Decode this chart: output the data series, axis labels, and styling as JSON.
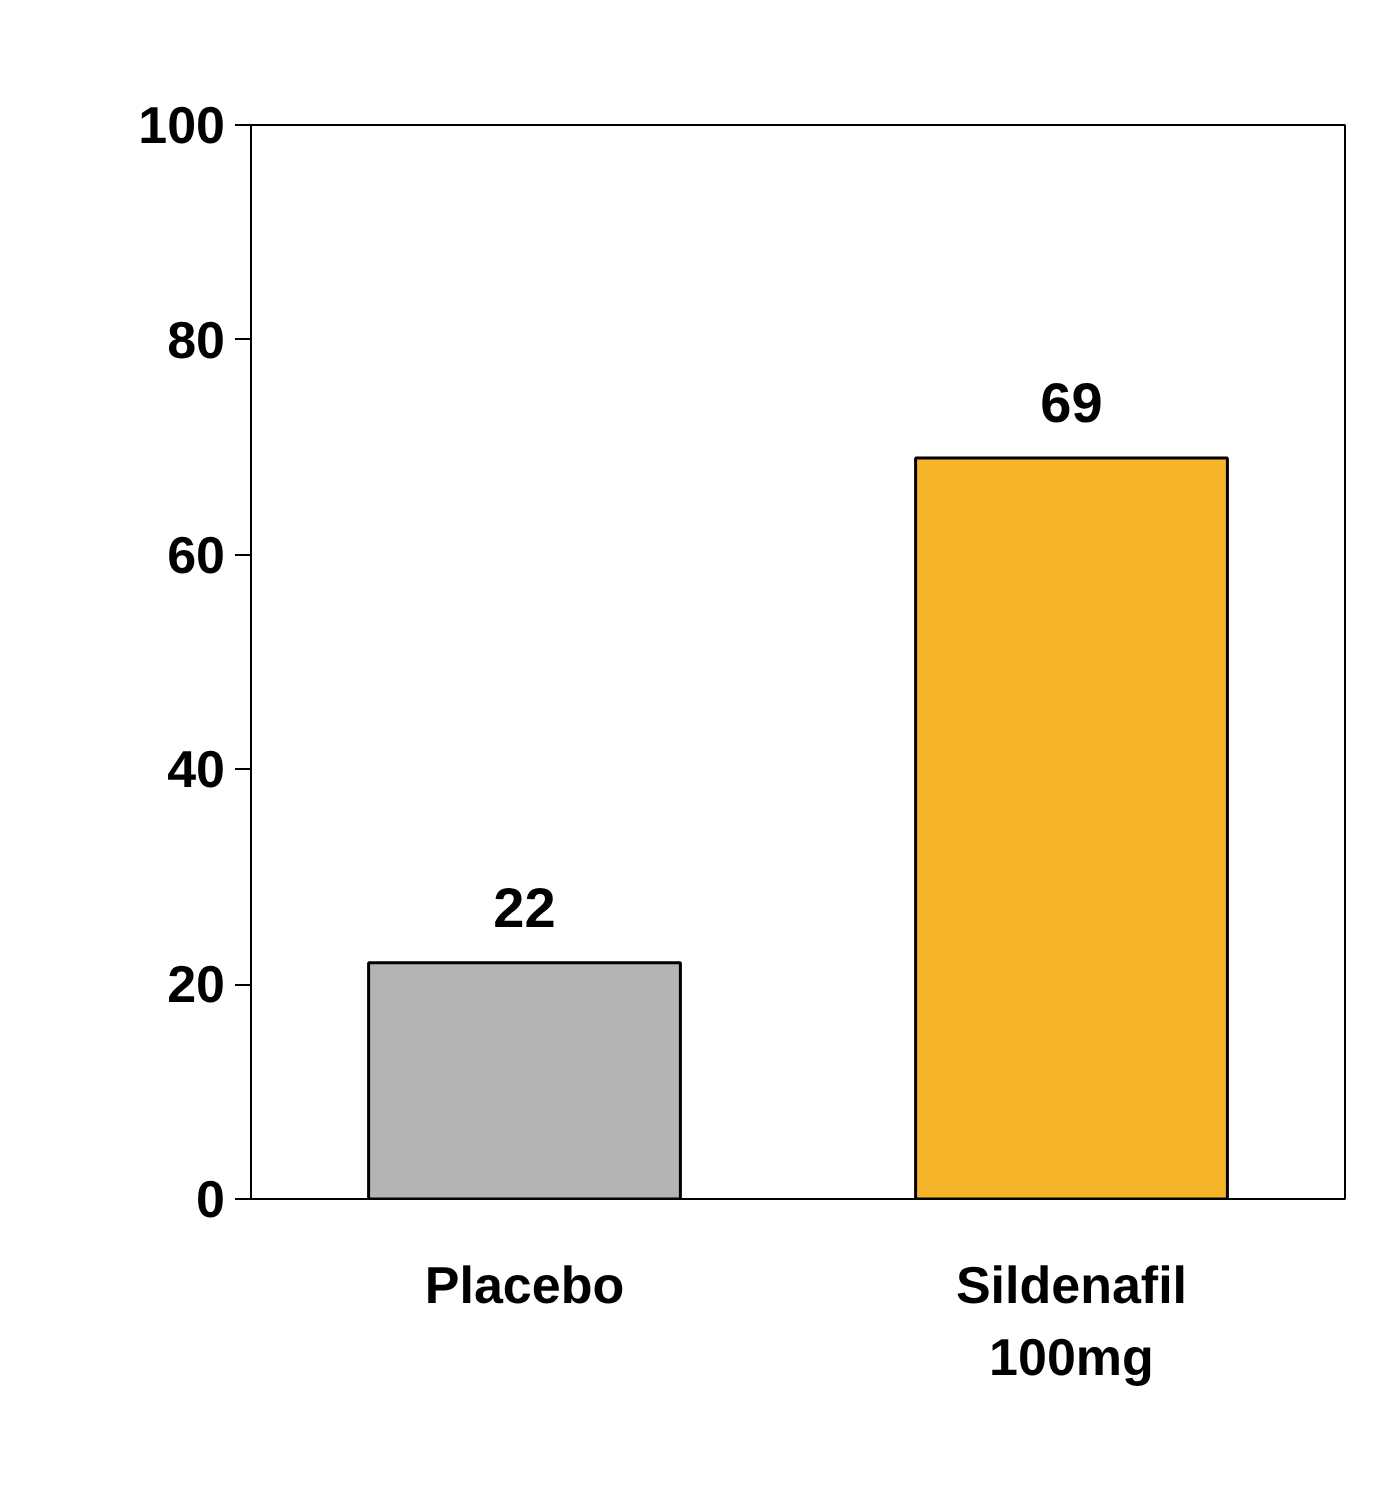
{
  "chart_data": {
    "type": "bar",
    "categories": [
      "Placebo",
      "Sildenafil 100mg"
    ],
    "values": [
      22,
      69
    ],
    "colors": [
      "#b4b4b4",
      "#f6b42a"
    ],
    "ylim": [
      0,
      100
    ],
    "yticks": [
      0,
      20,
      40,
      60,
      80,
      100
    ],
    "data_labels": true,
    "grid": false
  }
}
